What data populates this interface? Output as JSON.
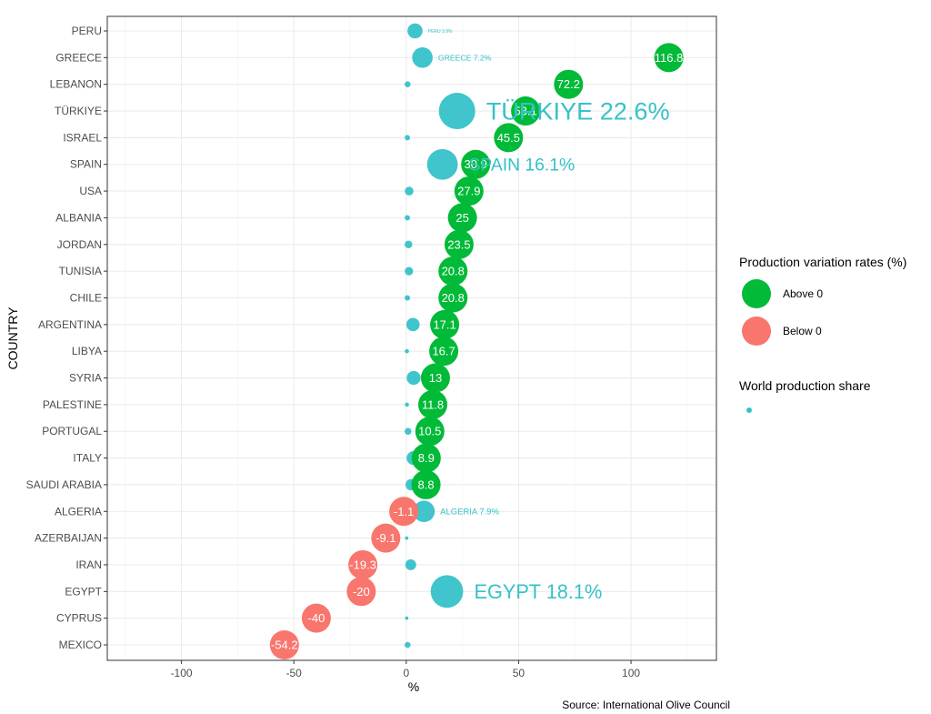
{
  "chart_data": {
    "type": "scatter",
    "title": "",
    "xlabel": "%",
    "ylabel": "COUNTRY",
    "xlim": [
      -133,
      138
    ],
    "xticks": [
      -100,
      -50,
      0,
      50,
      100
    ],
    "grid": true,
    "categories": [
      "PERU",
      "GREECE",
      "LEBANON",
      "TÜRKIYE",
      "ISRAEL",
      "SPAIN",
      "USA",
      "ALBANIA",
      "JORDAN",
      "TUNISIA",
      "CHILE",
      "ARGENTINA",
      "LIBYA",
      "SYRIA",
      "PALESTINE",
      "PORTUGAL",
      "ITALY",
      "SAUDI ARABIA",
      "ALGERIA",
      "AZERBAIJAN",
      "IRAN",
      "EGYPT",
      "CYPRUS",
      "MEXICO"
    ],
    "series": [
      {
        "name": "Production variation rates (%)",
        "values": [
          null,
          116.8,
          72.2,
          53.1,
          45.5,
          30.9,
          27.9,
          25,
          23.5,
          20.8,
          20.8,
          17.1,
          16.7,
          13,
          11.8,
          10.5,
          8.9,
          8.8,
          -1.1,
          -9.1,
          -19.3,
          -20,
          -40,
          -54.2
        ],
        "labels": [
          "",
          "116.8",
          "72.2",
          "53.1",
          "45.5",
          "30.9",
          "27.9",
          "25",
          "23.5",
          "20.8",
          "20.8",
          "17.1",
          "16.7",
          "13",
          "11.8",
          "10.5",
          "8.9",
          "8.8",
          "-1.1",
          "-9.1",
          "-19.3",
          "-20",
          "-40",
          "-54.2"
        ]
      },
      {
        "name": "World production share",
        "values": [
          3.9,
          7.2,
          0.6,
          22.6,
          0.5,
          16.1,
          1.3,
          0.5,
          1,
          1.2,
          0.5,
          3,
          0.3,
          3.3,
          0.3,
          0.8,
          3.2,
          2.2,
          7.9,
          0.2,
          2,
          18.1,
          0.2,
          0.6
        ]
      }
    ],
    "share_labels": [
      {
        "country": "PERU",
        "text": "PERU 3.9%"
      },
      {
        "country": "GREECE",
        "text": "GREECE 7.2%"
      },
      {
        "country": "TÜRKIYE",
        "text": "TÜRKIYE 22.6%"
      },
      {
        "country": "SPAIN",
        "text": "SPAIN 16.1%"
      },
      {
        "country": "ALGERIA",
        "text": "ALGERIA 7.9%"
      },
      {
        "country": "EGYPT",
        "text": "EGYPT 18.1%"
      }
    ],
    "legend": {
      "placement": "right",
      "groups": [
        {
          "title": "Production variation rates (%)",
          "items": [
            {
              "label": "Above 0",
              "color": "#00ba38"
            },
            {
              "label": "Below 0",
              "color": "#f8766d"
            }
          ]
        },
        {
          "title": "World production share",
          "items": [
            {
              "label": "",
              "color": "#35c2c8"
            }
          ]
        }
      ]
    },
    "colors": {
      "above": "#00ba38",
      "below": "#f8766d",
      "share": "#35c2c8"
    },
    "caption": "Source: International Olive Council"
  }
}
